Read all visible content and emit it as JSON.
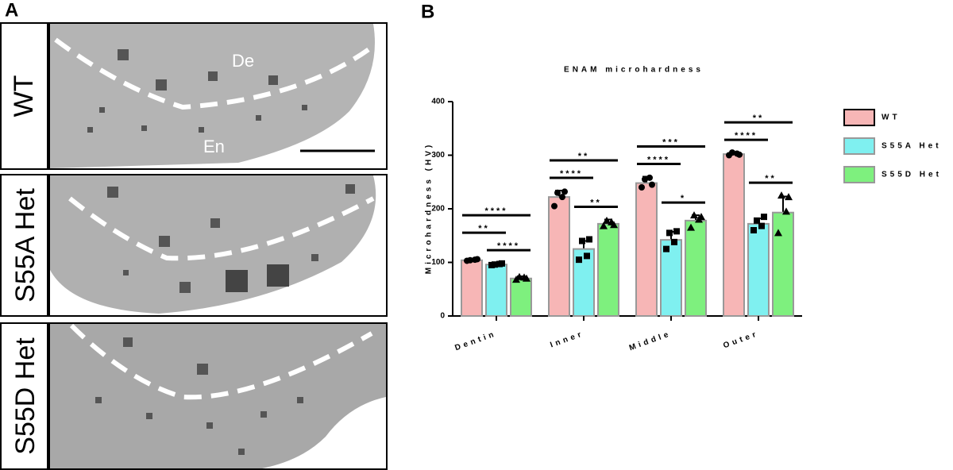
{
  "panel_a": {
    "letter": "A",
    "rows": [
      "WT",
      "S55A Het",
      "S55D Het"
    ],
    "regions": [
      "De",
      "En"
    ]
  },
  "chart_data": {
    "type": "bar",
    "letter": "B",
    "title": "ENAM microhardness",
    "ylabel": "Microhardness (HV)",
    "categories": [
      "Dentin",
      "Inner",
      "Middle",
      "Outer"
    ],
    "ylim": [
      0,
      400
    ],
    "yticks": [
      0,
      100,
      200,
      300,
      400
    ],
    "series": [
      {
        "name": "WT",
        "color": "#f7b6b6",
        "marker": "circle",
        "values": [
          104,
          222,
          248,
          302
        ],
        "errors": [
          3,
          12,
          12,
          3
        ],
        "points": [
          [
            103,
            105,
            104,
            106
          ],
          [
            205,
            222,
            230,
            232
          ],
          [
            240,
            258,
            255,
            245
          ],
          [
            300,
            303,
            305,
            301
          ]
        ]
      },
      {
        "name": "S55A Het",
        "color": "#7ff0f0",
        "marker": "square",
        "values": [
          96,
          125,
          142,
          172
        ],
        "errors": [
          3,
          15,
          15,
          10
        ],
        "points": [
          [
            95,
            97,
            96,
            98
          ],
          [
            105,
            112,
            140,
            143
          ],
          [
            125,
            138,
            155,
            158
          ],
          [
            160,
            168,
            178,
            185
          ]
        ]
      },
      {
        "name": "S55D Het",
        "color": "#7ef07e",
        "marker": "triangle",
        "values": [
          70,
          172,
          178,
          193
        ],
        "errors": [
          4,
          8,
          10,
          30
        ],
        "points": [
          [
            68,
            72,
            73,
            70
          ],
          [
            168,
            175,
            178,
            170
          ],
          [
            165,
            180,
            188,
            185
          ],
          [
            155,
            195,
            225,
            222
          ]
        ]
      }
    ],
    "annotations": [
      {
        "category": "Dentin",
        "between": [
          "S55A Het",
          "S55D Het"
        ],
        "text": "****"
      },
      {
        "category": "Dentin",
        "between": [
          "WT",
          "S55A Het"
        ],
        "text": "**"
      },
      {
        "category": "Dentin",
        "between": [
          "WT",
          "S55D Het"
        ],
        "text": "****"
      },
      {
        "category": "Inner",
        "between": [
          "S55A Het",
          "S55D Het"
        ],
        "text": "**"
      },
      {
        "category": "Inner",
        "between": [
          "WT",
          "S55A Het"
        ],
        "text": "****"
      },
      {
        "category": "Inner",
        "between": [
          "WT",
          "S55D Het"
        ],
        "text": "**"
      },
      {
        "category": "Middle",
        "between": [
          "S55A Het",
          "S55D Het"
        ],
        "text": "*"
      },
      {
        "category": "Middle",
        "between": [
          "WT",
          "S55A Het"
        ],
        "text": "****"
      },
      {
        "category": "Middle",
        "between": [
          "WT",
          "S55D Het"
        ],
        "text": "***"
      },
      {
        "category": "Outer",
        "between": [
          "S55A Het",
          "S55D Het"
        ],
        "text": "**"
      },
      {
        "category": "Outer",
        "between": [
          "WT",
          "S55A Het"
        ],
        "text": "****"
      },
      {
        "category": "Outer",
        "between": [
          "WT",
          "S55D Het"
        ],
        "text": "**"
      }
    ]
  }
}
